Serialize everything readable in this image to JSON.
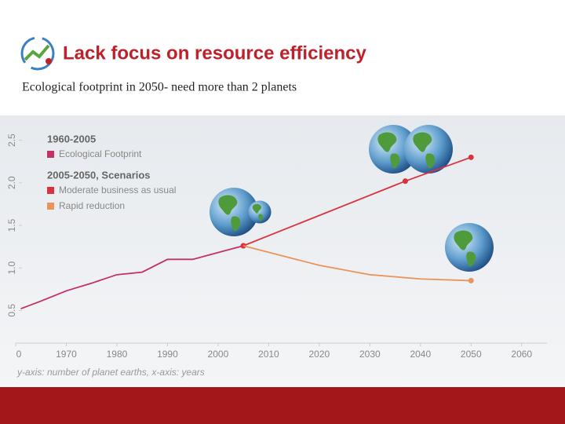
{
  "chart_data": {
    "type": "line",
    "title": "Lack focus on resource efficiency",
    "subtitle": "Ecological footprint in 2050- need more than 2 planets",
    "legend_headings": [
      "1960-2005",
      "2005-2050, Scenarios"
    ],
    "axis_note": "y-axis: number of planet earths, x-axis: years",
    "xlim": [
      1960,
      2065
    ],
    "ylim": [
      0.3,
      2.7
    ],
    "xticks": [
      {
        "value": 1960,
        "label": "0"
      },
      1970,
      1980,
      1990,
      2000,
      2010,
      2020,
      2030,
      2040,
      2050,
      2060
    ],
    "yticks": [
      0.5,
      {
        "value": 1,
        "label": "1.0"
      },
      1.5,
      {
        "value": 2,
        "label": "2.0"
      },
      2.5
    ],
    "series": [
      {
        "name": "Ecological Footprint",
        "color": "#c4306a",
        "x": [
          1961,
          1965,
          1970,
          1975,
          1980,
          1985,
          1990,
          1995,
          2000,
          2005
        ],
        "values": [
          0.52,
          0.61,
          0.73,
          0.82,
          0.92,
          0.95,
          1.1,
          1.1,
          1.18,
          1.26
        ]
      },
      {
        "name": "Moderate business as usual",
        "color": "#d9333f",
        "x": [
          2005,
          2037,
          2050
        ],
        "values": [
          1.26,
          2.02,
          2.3
        ]
      },
      {
        "name": "Rapid reduction",
        "color": "#e8945a",
        "x": [
          2005,
          2020,
          2030,
          2040,
          2050
        ],
        "values": [
          1.26,
          1.03,
          0.92,
          0.87,
          0.85
        ]
      }
    ]
  }
}
